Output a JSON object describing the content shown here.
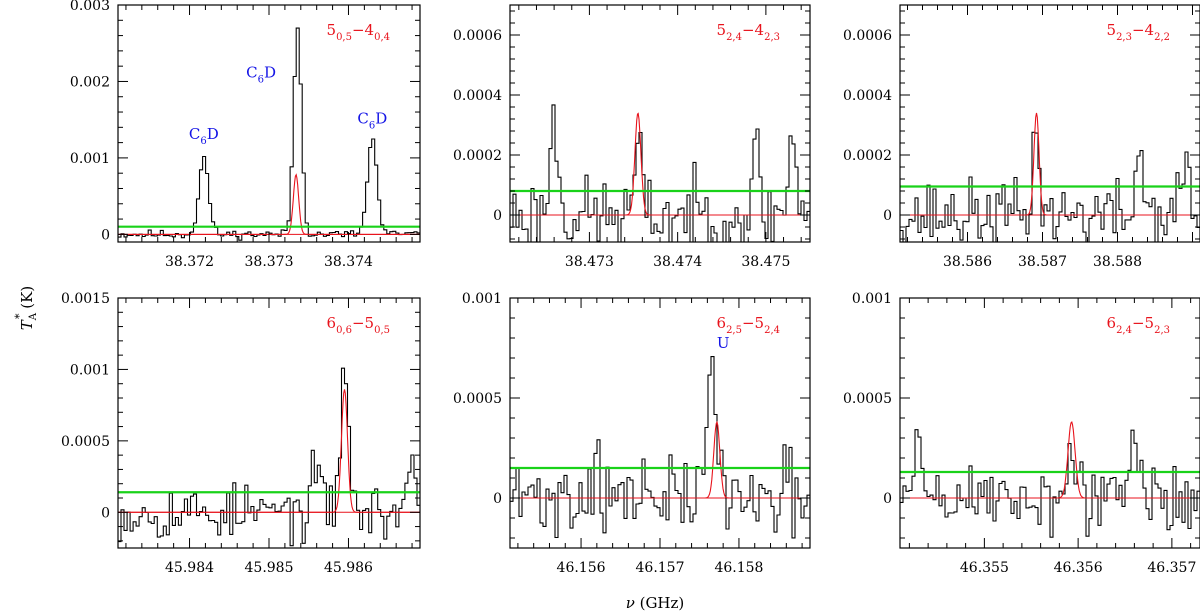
{
  "figure": {
    "ylabel": "T",
    "ylabel_sub": "A",
    "ylabel_sup": "*",
    "ylabel_unit": " (K)",
    "xlabel_sym": "ν",
    "xlabel_unit": " (GHz)"
  },
  "colors": {
    "spectrum": "#000000",
    "model": "#e8131c",
    "noise": "#19d219",
    "annotation": "#1414e6"
  },
  "chart_data": [
    {
      "type": "line",
      "transition": {
        "main": "5",
        "sub1": "0,5",
        "dash": "−4",
        "sub2": "0,4"
      },
      "xlim": [
        38.3711,
        38.3749
      ],
      "ylim": [
        -0.0001,
        0.003
      ],
      "xticks": [
        38.372,
        38.373,
        38.374
      ],
      "xtick_labels": [
        "38.372",
        "38.373",
        "38.374"
      ],
      "yticks": [
        0,
        0.001,
        0.002,
        0.003
      ],
      "ytick_labels": [
        "0",
        "0.001",
        "0.002",
        "0.003"
      ],
      "noise_level": 0.0001,
      "model_peak": {
        "center": 38.37334,
        "amplitude": 0.00078,
        "fwhm": 8e-05
      },
      "features": [
        {
          "center": 38.37218,
          "amplitude": 0.001,
          "width": 6e-05
        },
        {
          "center": 38.37336,
          "amplitude": 0.0027,
          "width": 5e-05
        },
        {
          "center": 38.3743,
          "amplitude": 0.00125,
          "width": 6e-05
        }
      ],
      "noise_rms": 4e-05,
      "seed": 11,
      "annotations": [
        {
          "main": "C",
          "sub": "6",
          "rest": "D",
          "x": 38.37218,
          "y": 0.00125
        },
        {
          "main": "C",
          "sub": "6",
          "rest": "D",
          "x": 38.3729,
          "y": 0.00205
        },
        {
          "main": "C",
          "sub": "6",
          "rest": "D",
          "x": 38.3743,
          "y": 0.00145
        }
      ]
    },
    {
      "type": "line",
      "transition": {
        "main": "5",
        "sub1": "2,4",
        "dash": "−4",
        "sub2": "2,3"
      },
      "xlim": [
        38.4721,
        38.4755
      ],
      "ylim": [
        -9e-05,
        0.0007
      ],
      "xticks": [
        38.473,
        38.474,
        38.475
      ],
      "xtick_labels": [
        "38.473",
        "38.474",
        "38.475"
      ],
      "yticks": [
        0,
        0.0002,
        0.0004,
        0.0006
      ],
      "ytick_labels": [
        "0",
        "0.0002",
        "0.0004",
        "0.0006"
      ],
      "noise_level": 8e-05,
      "model_peak": {
        "center": 38.47355,
        "amplitude": 0.00034,
        "fwhm": 8e-05
      },
      "features": [
        {
          "center": 38.47355,
          "amplitude": 0.00022,
          "width": 4e-05
        },
        {
          "center": 38.4726,
          "amplitude": 0.0003,
          "width": 5e-05
        },
        {
          "center": 38.4753,
          "amplitude": 0.00025,
          "width": 5e-05
        },
        {
          "center": 38.4749,
          "amplitude": 0.00025,
          "width": 3e-05
        }
      ],
      "noise_rms": 9e-05,
      "seed": 23,
      "annotations": []
    },
    {
      "type": "line",
      "transition": {
        "main": "5",
        "sub1": "2,3",
        "dash": "−4",
        "sub2": "2,2"
      },
      "xlim": [
        38.5851,
        38.5891
      ],
      "ylim": [
        -9e-05,
        0.0007
      ],
      "xticks": [
        38.586,
        38.587,
        38.588
      ],
      "xtick_labels": [
        "38.586",
        "38.587",
        "38.588"
      ],
      "yticks": [
        0,
        0.0002,
        0.0004,
        0.0006
      ],
      "ytick_labels": [
        "0",
        "0.0002",
        "0.0004",
        "0.0006"
      ],
      "noise_level": 9.5e-05,
      "model_peak": {
        "center": 38.58692,
        "amplitude": 0.00034,
        "fwhm": 8e-05
      },
      "features": [
        {
          "center": 38.58692,
          "amplitude": 0.00032,
          "width": 4e-05
        },
        {
          "center": 38.5883,
          "amplitude": 0.00022,
          "width": 5e-05
        },
        {
          "center": 38.5889,
          "amplitude": 0.00018,
          "width": 5e-05
        }
      ],
      "noise_rms": 8e-05,
      "seed": 37,
      "annotations": []
    },
    {
      "type": "line",
      "transition": {
        "main": "6",
        "sub1": "0,6",
        "dash": "−5",
        "sub2": "0,5"
      },
      "xlim": [
        45.9831,
        45.9869
      ],
      "ylim": [
        -0.00025,
        0.0015
      ],
      "xticks": [
        45.984,
        45.985,
        45.986
      ],
      "xtick_labels": [
        "45.984",
        "45.985",
        "45.986"
      ],
      "yticks": [
        0,
        0.0005,
        0.001,
        0.0015
      ],
      "ytick_labels": [
        "0",
        "0.0005",
        "0.001",
        "0.0015"
      ],
      "noise_level": 0.00014,
      "model_peak": {
        "center": 45.98595,
        "amplitude": 0.00086,
        "fwhm": 9e-05
      },
      "features": [
        {
          "center": 45.98595,
          "amplitude": 0.00105,
          "width": 5e-05
        },
        {
          "center": 45.9856,
          "amplitude": 0.0004,
          "width": 4e-05
        },
        {
          "center": 45.9868,
          "amplitude": 0.00045,
          "width": 4e-05
        }
      ],
      "noise_rms": 0.00014,
      "seed": 53,
      "annotations": []
    },
    {
      "type": "line",
      "transition": {
        "main": "6",
        "sub1": "2,5",
        "dash": "−5",
        "sub2": "2,4"
      },
      "xlim": [
        46.1551,
        46.1589
      ],
      "ylim": [
        -0.00025,
        0.001
      ],
      "xticks": [
        46.156,
        46.157,
        46.158
      ],
      "xtick_labels": [
        "46.156",
        "46.157",
        "46.158"
      ],
      "yticks": [
        0,
        0.0005,
        0.001
      ],
      "ytick_labels": [
        "0",
        "0.0005",
        "0.001"
      ],
      "noise_level": 0.00015,
      "model_peak": {
        "center": 46.15772,
        "amplitude": 0.00038,
        "fwhm": 9e-05
      },
      "features": [
        {
          "center": 46.15766,
          "amplitude": 0.00068,
          "width": 6e-05
        },
        {
          "center": 46.1562,
          "amplitude": 0.00028,
          "width": 4e-05
        },
        {
          "center": 46.1586,
          "amplitude": 0.0003,
          "width": 4e-05
        }
      ],
      "noise_rms": 0.00014,
      "seed": 71,
      "annotations": [
        {
          "main": "U",
          "sub": "",
          "rest": "",
          "x": 46.1578,
          "y": 0.00075
        }
      ]
    },
    {
      "type": "line",
      "transition": {
        "main": "6",
        "sub1": "2,4",
        "dash": "−5",
        "sub2": "2,3"
      },
      "xlim": [
        46.3541,
        46.3573
      ],
      "ylim": [
        -0.00025,
        0.001
      ],
      "xticks": [
        46.355,
        46.356,
        46.357
      ],
      "xtick_labels": [
        "46.355",
        "46.356",
        "46.357"
      ],
      "yticks": [
        0,
        0.0005,
        0.001
      ],
      "ytick_labels": [
        "0",
        "0.0005",
        "0.001"
      ],
      "noise_level": 0.00013,
      "model_peak": {
        "center": 46.35593,
        "amplitude": 0.00038,
        "fwhm": 9e-05
      },
      "features": [
        {
          "center": 46.35595,
          "amplitude": 0.0002,
          "width": 5e-05
        },
        {
          "center": 46.3566,
          "amplitude": 0.0003,
          "width": 4e-05
        },
        {
          "center": 46.3543,
          "amplitude": 0.0003,
          "width": 4e-05
        }
      ],
      "noise_rms": 0.00013,
      "seed": 89,
      "annotations": []
    }
  ]
}
